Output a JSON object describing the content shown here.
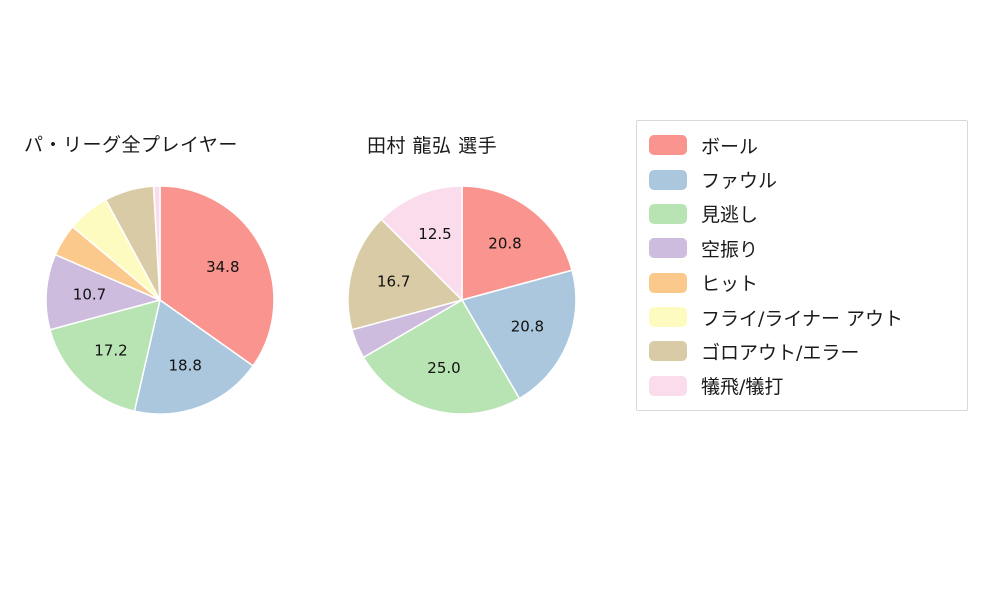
{
  "figure": {
    "background_color": "#ffffff"
  },
  "chart_data": [
    {
      "type": "pie",
      "title": "パ・リーグ全プレイヤー",
      "categories": [
        "ボール",
        "ファウル",
        "見逃し",
        "空振り",
        "ヒット",
        "フライ/ライナー アウト",
        "ゴロアウト/エラー",
        "犠飛/犠打"
      ],
      "values": [
        34.8,
        18.8,
        17.2,
        10.7,
        4.6,
        6.0,
        7.0,
        0.9
      ],
      "value_labels_shown": [
        "34.8",
        "18.8",
        "17.2",
        "10.7",
        "",
        "",
        "",
        ""
      ],
      "start_angle": "top",
      "direction": "clockwise"
    },
    {
      "type": "pie",
      "title": "田村 龍弘  選手",
      "categories": [
        "ボール",
        "ファウル",
        "見逃し",
        "空振り",
        "ヒット",
        "フライ/ライナー アウト",
        "ゴロアウト/エラー",
        "犠飛/犠打"
      ],
      "values": [
        20.8,
        20.8,
        25.0,
        4.2,
        0,
        0,
        16.7,
        12.5
      ],
      "value_labels_shown": [
        "20.8",
        "20.8",
        "25.0",
        "",
        "",
        "",
        "16.7",
        "12.5"
      ],
      "start_angle": "top",
      "direction": "clockwise"
    }
  ],
  "legend": {
    "position": "right",
    "items": [
      {
        "label": "ボール",
        "color": "#F9958E"
      },
      {
        "label": "ファウル",
        "color": "#AAC7DE"
      },
      {
        "label": "見逃し",
        "color": "#B8E3B2"
      },
      {
        "label": "空振り",
        "color": "#CDBCDE"
      },
      {
        "label": "ヒット",
        "color": "#FBC98B"
      },
      {
        "label": "フライ/ライナー アウト",
        "color": "#FDFBC0"
      },
      {
        "label": "ゴロアウト/エラー",
        "color": "#D8CBA6"
      },
      {
        "label": "犠飛/犠打",
        "color": "#FBDCEC"
      }
    ]
  }
}
